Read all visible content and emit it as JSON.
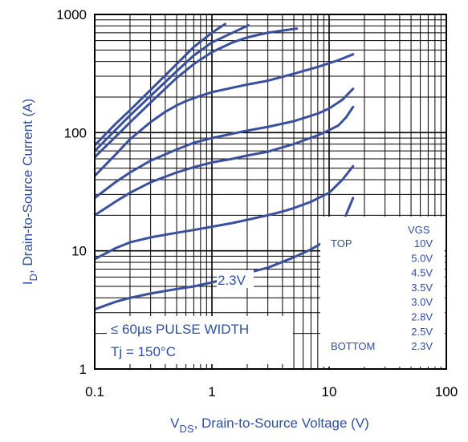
{
  "chart_data": {
    "type": "line",
    "xscale": "log",
    "yscale": "log",
    "xlim": [
      0.1,
      100
    ],
    "ylim": [
      1,
      1000
    ],
    "grid": true,
    "xtick_labels": [
      "0.1",
      "1",
      "10",
      "100"
    ],
    "ytick_labels": [
      "1",
      "10",
      "100",
      "1000"
    ],
    "xlabel": {
      "main": "V",
      "sub": "DS",
      "rest": ", Drain-to-Source Voltage (V)"
    },
    "ylabel": {
      "main": "I",
      "sub": "D",
      "rest": ", Drain-to-Source Current (A)"
    },
    "legend": {
      "header": "VGS",
      "top_label": "TOP",
      "bottom_label": "BOTTOM",
      "values": [
        "10V",
        "5.0V",
        "4.5V",
        "3.5V",
        "3.0V",
        "2.8V",
        "2.5V",
        "2.3V"
      ],
      "placement": "bottom-right"
    },
    "annotations": {
      "curve_label": "2.3V",
      "pulse": "≤ 60µs PULSE WIDTH",
      "tj": "Tj = 150°C"
    },
    "line_color": "#3a4f9e",
    "series": [
      {
        "x": [
          0.1,
          0.15,
          0.2,
          0.3,
          0.5,
          0.7,
          1.0,
          1.3
        ],
        "y": [
          78,
          118,
          155,
          230,
          380,
          530,
          700,
          830
        ]
      },
      {
        "x": [
          0.1,
          0.15,
          0.2,
          0.3,
          0.5,
          0.7,
          1.0,
          1.5,
          2.05
        ],
        "y": [
          70,
          105,
          140,
          205,
          330,
          450,
          580,
          700,
          810
        ]
      },
      {
        "x": [
          0.1,
          0.15,
          0.2,
          0.3,
          0.5,
          0.7,
          1.0,
          1.5,
          2.0,
          3.0,
          4.0,
          5.3
        ],
        "y": [
          62,
          92,
          122,
          180,
          290,
          380,
          480,
          580,
          640,
          700,
          730,
          760
        ]
      },
      {
        "x": [
          0.1,
          0.15,
          0.2,
          0.3,
          0.4,
          0.5,
          0.6,
          0.8,
          1.0,
          1.5,
          2.0,
          3.0,
          5.0,
          8.0,
          12.0,
          16.0
        ],
        "y": [
          43,
          65,
          88,
          123,
          150,
          170,
          185,
          205,
          220,
          240,
          255,
          275,
          315,
          360,
          410,
          460
        ]
      },
      {
        "x": [
          0.1,
          0.15,
          0.2,
          0.3,
          0.5,
          0.7,
          1.0,
          1.5,
          2.0,
          3.0,
          5.0,
          8.0,
          10.0,
          13.0,
          16.0
        ],
        "y": [
          28,
          38,
          46,
          58,
          72,
          82,
          90,
          98,
          104,
          112,
          125,
          145,
          160,
          190,
          235
        ]
      },
      {
        "x": [
          0.1,
          0.15,
          0.2,
          0.3,
          0.5,
          0.7,
          1.0,
          1.5,
          2.0,
          3.0,
          5.0,
          8.0,
          10.0,
          12.0,
          14.0,
          16.0
        ],
        "y": [
          20,
          26,
          31,
          38,
          46,
          51,
          56,
          60,
          64,
          69,
          80,
          95,
          105,
          115,
          135,
          165
        ]
      },
      {
        "x": [
          0.1,
          0.15,
          0.2,
          0.3,
          0.5,
          0.7,
          1.0,
          1.5,
          2.0,
          3.0,
          4.0,
          5.0,
          7.0,
          10.0,
          13.0,
          16.0
        ],
        "y": [
          8.5,
          10.5,
          11.8,
          13,
          14.2,
          15,
          16,
          17.2,
          18.3,
          20,
          21.5,
          23,
          26,
          31,
          40,
          52
        ]
      },
      {
        "x": [
          0.1,
          0.15,
          0.2,
          0.3,
          0.5,
          0.7,
          1.0,
          1.5,
          2.0,
          3.0,
          5.0,
          7.0,
          10.0,
          13.0,
          16.0
        ],
        "y": [
          3.2,
          3.7,
          4.0,
          4.35,
          4.75,
          5.0,
          5.4,
          6.0,
          6.5,
          7.2,
          8.8,
          10.3,
          12.6,
          17,
          28
        ]
      }
    ]
  }
}
